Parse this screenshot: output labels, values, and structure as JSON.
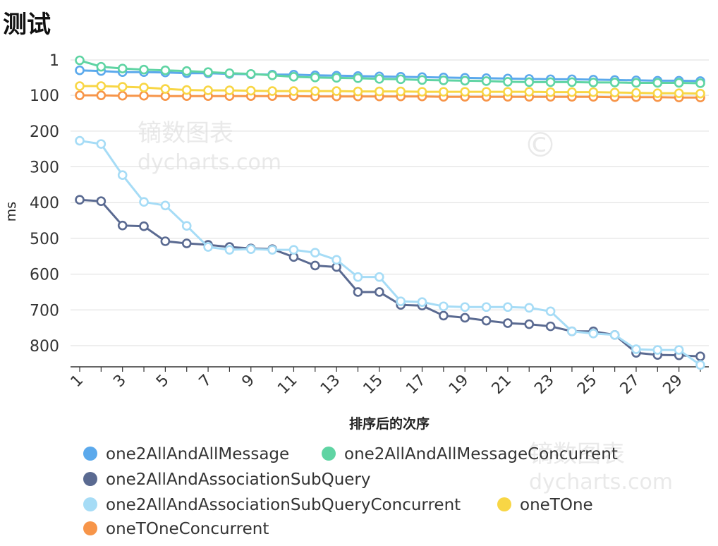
{
  "chart_data": {
    "type": "line",
    "title": "测试",
    "xlabel": "排序后的次序",
    "ylabel": "ms",
    "y_inverted": true,
    "ylim": [
      -10,
      860
    ],
    "y_ticks": [
      1,
      100,
      200,
      300,
      400,
      500,
      600,
      700,
      800
    ],
    "x": [
      1,
      2,
      3,
      4,
      5,
      6,
      7,
      8,
      9,
      10,
      11,
      12,
      13,
      14,
      15,
      16,
      17,
      18,
      19,
      20,
      21,
      22,
      23,
      24,
      25,
      26,
      27,
      28,
      29,
      30
    ],
    "x_tick_labels": [
      "1",
      "3",
      "5",
      "7",
      "9",
      "11",
      "13",
      "15",
      "17",
      "19",
      "21",
      "23",
      "25",
      "27",
      "29"
    ],
    "grid": true,
    "legend_position": "bottom",
    "series": [
      {
        "name": "one2AllAndAllMessage",
        "color": "#5ba9ec",
        "values": [
          30,
          32,
          35,
          35,
          36,
          38,
          38,
          40,
          41,
          42,
          42,
          44,
          45,
          46,
          47,
          48,
          49,
          50,
          51,
          52,
          53,
          54,
          55,
          55,
          56,
          57,
          58,
          59,
          59,
          60
        ]
      },
      {
        "name": "one2AllAndAllMessageConcurrent",
        "color": "#5fd4a3",
        "values": [
          2,
          20,
          25,
          28,
          30,
          32,
          35,
          38,
          40,
          44,
          48,
          50,
          51,
          52,
          54,
          55,
          57,
          58,
          59,
          60,
          62,
          63,
          63,
          63,
          64,
          64,
          65,
          65,
          65,
          66
        ]
      },
      {
        "name": "one2AllAndAssociationSubQuery",
        "color": "#5a6a91",
        "values": [
          392,
          396,
          464,
          466,
          508,
          514,
          518,
          524,
          528,
          530,
          552,
          576,
          580,
          650,
          650,
          686,
          688,
          716,
          722,
          730,
          737,
          740,
          746,
          760,
          760,
          770,
          820,
          826,
          827,
          830
        ]
      },
      {
        "name": "one2AllAndAssociationSubQueryConcurrent",
        "color": "#a6dcf6",
        "values": [
          227,
          236,
          323,
          398,
          408,
          465,
          524,
          532,
          530,
          532,
          532,
          540,
          560,
          608,
          608,
          676,
          678,
          690,
          692,
          692,
          692,
          694,
          704,
          760,
          766,
          770,
          810,
          812,
          812,
          854
        ]
      },
      {
        "name": "oneTOne",
        "color": "#f8d645",
        "values": [
          74,
          74,
          76,
          78,
          82,
          85,
          86,
          86,
          87,
          88,
          88,
          88,
          88,
          89,
          89,
          89,
          90,
          90,
          90,
          90,
          90,
          90,
          91,
          91,
          91,
          92,
          93,
          94,
          94,
          95
        ]
      },
      {
        "name": "oneTOneConcurrent",
        "color": "#f79549",
        "values": [
          100,
          100,
          101,
          101,
          102,
          102,
          102,
          102,
          102,
          102,
          102,
          103,
          103,
          103,
          103,
          103,
          103,
          104,
          104,
          104,
          104,
          104,
          104,
          104,
          104,
          105,
          105,
          105,
          106,
          106
        ]
      }
    ]
  },
  "watermark": {
    "cn": "镝数图表",
    "url": "dycharts.com",
    "copyright": "©"
  }
}
